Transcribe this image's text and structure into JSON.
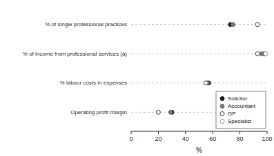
{
  "chart_data": {
    "type": "dot",
    "orientation": "horizontal",
    "categories": [
      "Operating profit margin",
      "% labour costs in expenses",
      "% of income from professional services (a)",
      "% of single professional practices"
    ],
    "series": [
      {
        "name": "Solicitor",
        "color": "#222222",
        "marker": "filled-circle",
        "values": [
          30,
          57,
          98,
          73
        ]
      },
      {
        "name": "Accountant",
        "color": "#777777",
        "marker": "filled-circle",
        "values": [
          29,
          56,
          96,
          75
        ]
      },
      {
        "name": "GP",
        "color": "#444444",
        "marker": "open-circle",
        "values": [
          20,
          55,
          93,
          93
        ]
      },
      {
        "name": "Specialist",
        "color": "#999999",
        "marker": "open-circle",
        "values": [
          null,
          null,
          99,
          null
        ]
      }
    ],
    "xlim": [
      0,
      100
    ],
    "xticks": [
      0,
      20,
      40,
      60,
      80,
      100
    ],
    "xlabel": "%",
    "legend": "lower right"
  }
}
